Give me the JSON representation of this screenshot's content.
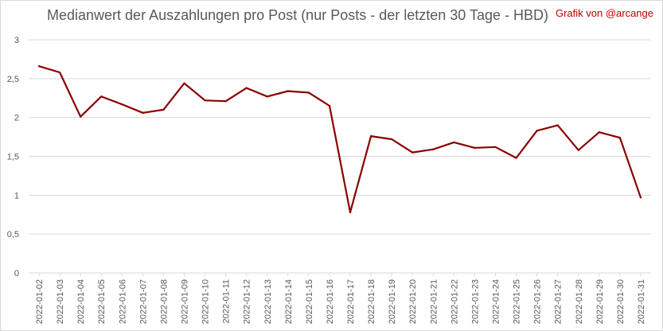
{
  "title": "Medianwert der Auszahlungen pro Post (nur Posts - der letzten 30 Tage - HBD)",
  "credit": "Grafik von @arcange",
  "colors": {
    "line": "#8b0000",
    "grid": "#d9d9d9",
    "text": "#595959",
    "credit": "#c00000"
  },
  "chart_data": {
    "type": "line",
    "title": "Medianwert der Auszahlungen pro Post (nur Posts - der letzten 30 Tage - HBD)",
    "xlabel": "",
    "ylabel": "",
    "ylim": [
      0,
      3
    ],
    "yticks": [
      "0",
      "0,5",
      "1",
      "1,5",
      "2",
      "2,5",
      "3"
    ],
    "grid": true,
    "legend": "none",
    "categories": [
      "2022-01-02",
      "2022-01-03",
      "2022-01-04",
      "2022-01-05",
      "2022-01-06",
      "2022-01-07",
      "2022-01-08",
      "2022-01-09",
      "2022-01-10",
      "2022-01-11",
      "2022-01-12",
      "2022-01-13",
      "2022-01-14",
      "2022-01-15",
      "2022-01-16",
      "2022-01-17",
      "2022-01-18",
      "2022-01-19",
      "2022-01-20",
      "2022-01-21",
      "2022-01-22",
      "2022-01-23",
      "2022-01-24",
      "2022-01-25",
      "2022-01-26",
      "2022-01-27",
      "2022-01-28",
      "2022-01-29",
      "2022-01-30",
      "2022-01-31"
    ],
    "series": [
      {
        "values": [
          2.66,
          2.58,
          2.01,
          2.27,
          2.17,
          2.06,
          2.1,
          2.44,
          2.22,
          2.21,
          2.38,
          2.27,
          2.34,
          2.32,
          2.15,
          0.78,
          1.76,
          1.72,
          1.55,
          1.59,
          1.68,
          1.61,
          1.62,
          1.48,
          1.83,
          1.9,
          1.58,
          1.81,
          1.74,
          0.97
        ]
      }
    ]
  }
}
